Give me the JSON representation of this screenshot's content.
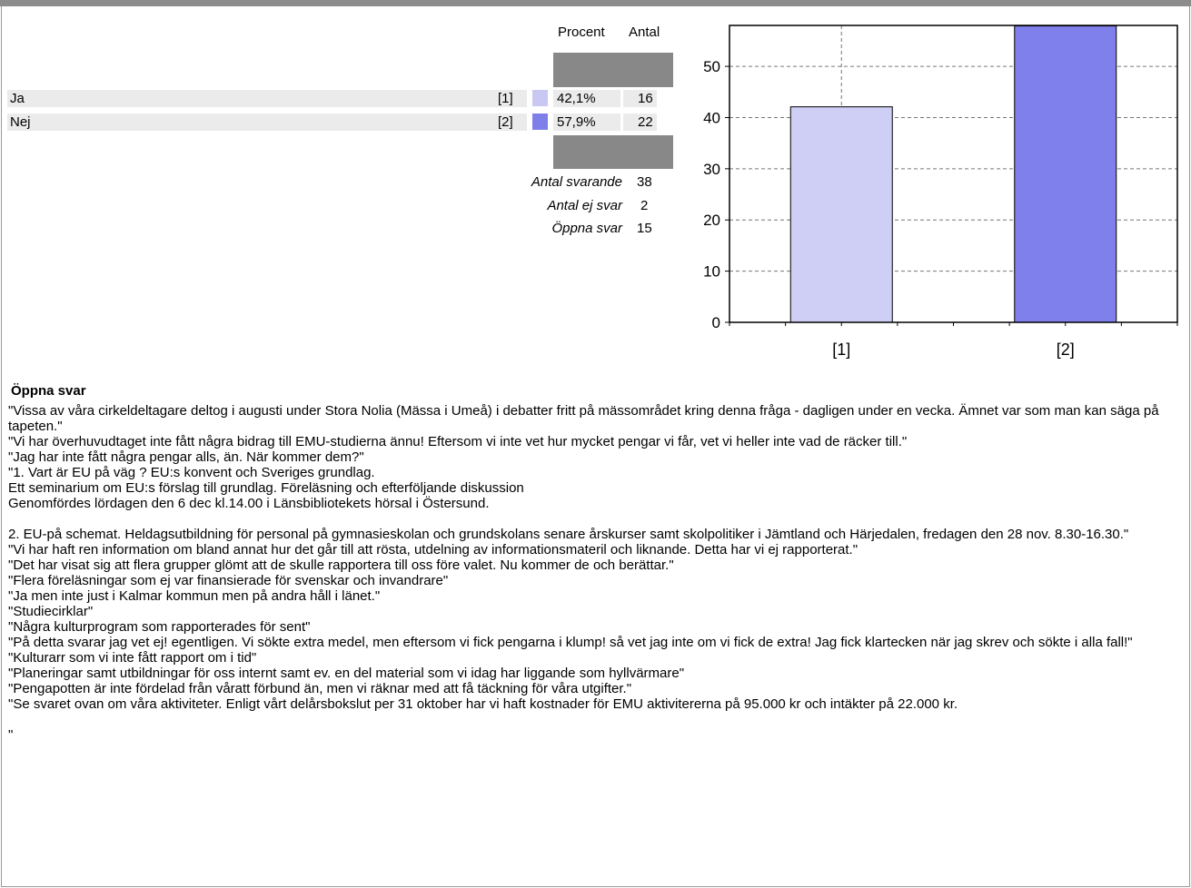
{
  "table": {
    "col_percent": "Procent",
    "col_count": "Antal",
    "rows": [
      {
        "label": "Ja",
        "code": "[1]",
        "percent": "42,1%",
        "count": "16",
        "color": "#c8c8f3"
      },
      {
        "label": "Nej",
        "code": "[2]",
        "percent": "57,9%",
        "count": "22",
        "color": "#7f7fe9"
      }
    ],
    "summary": [
      {
        "label": "Antal svarande",
        "value": "38"
      },
      {
        "label": "Antal ej svar",
        "value": "2"
      },
      {
        "label": "Öppna svar",
        "value": "15"
      }
    ]
  },
  "chart_data": {
    "type": "bar",
    "categories": [
      "[1]",
      "[2]"
    ],
    "values": [
      42.1,
      57.9
    ],
    "colors": [
      "#cfcff6",
      "#8080ec"
    ],
    "ylim": [
      0,
      58
    ],
    "yticks": [
      0,
      10,
      20,
      30,
      40,
      50
    ],
    "grid": true,
    "title": "",
    "xlabel": "",
    "ylabel": ""
  },
  "open_answers": {
    "title": "Öppna svar",
    "items": [
      "\"Vissa av våra cirkeldeltagare deltog i augusti under Stora Nolia (Mässa i Umeå) i debatter fritt på mässområdet kring denna fråga - dagligen under en vecka. Ämnet var som man kan säga på tapeten.\"",
      "\"Vi har överhuvudtaget inte fått några bidrag till EMU-studierna ännu! Eftersom vi inte vet hur mycket pengar vi får, vet vi heller inte vad de räcker till.\"",
      "\"Jag har inte fått några pengar alls, än. När kommer dem?\"",
      "\"1. Vart är EU på väg ? EU:s konvent och Sveriges grundlag.\nEtt seminarium om EU:s förslag till grundlag. Föreläsning och efterföljande diskussion\nGenomfördes lördagen den 6 dec kl.14.00 i Länsbibliotekets hörsal i Östersund.\n\n2. EU-på schemat. Heldagsutbildning för personal på gymnasieskolan och grundskolans senare årskurser samt skolpolitiker i Jämtland och Härjedalen, fredagen den 28 nov. 8.30-16.30.\"",
      "\"Vi har haft ren information om bland annat hur det går till att rösta, utdelning av informationsmateril och liknande. Detta har vi ej rapporterat.\"",
      "\"Det har visat sig att flera grupper glömt att de skulle rapportera till oss före valet. Nu kommer de och berättar.\"",
      "\"Flera föreläsningar som ej var finansierade för svenskar och invandrare\"",
      "\"Ja men inte just i Kalmar kommun men på andra håll i länet.\"",
      "\"Studiecirklar\"",
      "\"Några kulturprogram som rapporterades för sent\"",
      "\"På detta svarar jag vet ej! egentligen. Vi sökte extra medel, men eftersom vi fick pengarna i klump! så vet jag inte om vi fick de extra! Jag fick klartecken när jag skrev och sökte i alla fall!\"",
      "\"Kulturarr som vi inte fått rapport om i tid\"",
      "\"Planeringar samt utbildningar för oss internt samt ev. en del material som vi idag har liggande som hyllvärmare\"",
      "\"Pengapotten är inte fördelad från våratt förbund än, men vi räknar med att få täckning för våra utgifter.\"",
      "\"Se svaret ovan om våra aktiviteter. Enligt vårt delårsbokslut per 31 oktober har vi haft kostnader för EMU aktivitererna på 95.000 kr och intäkter på 22.000 kr.\n\n\""
    ]
  }
}
